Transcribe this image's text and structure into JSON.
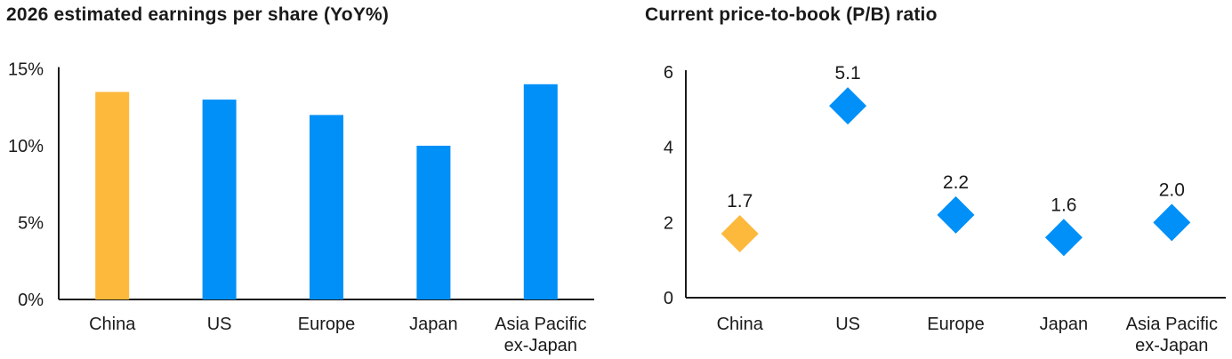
{
  "page": {
    "background": "#FFFFFF",
    "text_color": "#1A1A1A"
  },
  "colors": {
    "highlight_orange": "#FDB93C",
    "series_blue": "#0090F8",
    "axis_black": "#1A1A1A"
  },
  "chart_data": [
    {
      "type": "bar",
      "title": "2026 estimated earnings per share (YoY%)",
      "categories": [
        "China",
        "US",
        "Europe",
        "Japan",
        "Asia Pacific ex-Japan"
      ],
      "values": [
        13.5,
        13,
        12,
        10,
        14
      ],
      "unit": "%",
      "point_colors": [
        "#FDB93C",
        "#0090F8",
        "#0090F8",
        "#0090F8",
        "#0090F8"
      ],
      "highlighted_category": "China",
      "xlabel": "",
      "ylabel": "",
      "ylim": [
        0,
        15
      ],
      "y_ticks": [
        "0%",
        "5%",
        "10%",
        "15%"
      ],
      "y_tick_values": [
        0,
        5,
        10,
        15
      ],
      "grid": false,
      "legend": "none"
    },
    {
      "type": "scatter",
      "title": "Current price-to-book (P/B) ratio",
      "categories": [
        "China",
        "US",
        "Europe",
        "Japan",
        "Asia Pacific ex-Japan"
      ],
      "values": [
        1.7,
        5.1,
        2.2,
        1.6,
        2.0
      ],
      "data_labels": [
        "1.7",
        "5.1",
        "2.2",
        "1.6",
        "2.0"
      ],
      "marker": "diamond",
      "point_colors": [
        "#FDB93C",
        "#0090F8",
        "#0090F8",
        "#0090F8",
        "#0090F8"
      ],
      "highlighted_category": "China",
      "xlabel": "",
      "ylabel": "",
      "ylim": [
        0,
        6
      ],
      "y_ticks": [
        "0",
        "2",
        "4",
        "6"
      ],
      "y_tick_values": [
        0,
        2,
        4,
        6
      ],
      "grid": false,
      "legend": "none"
    }
  ]
}
